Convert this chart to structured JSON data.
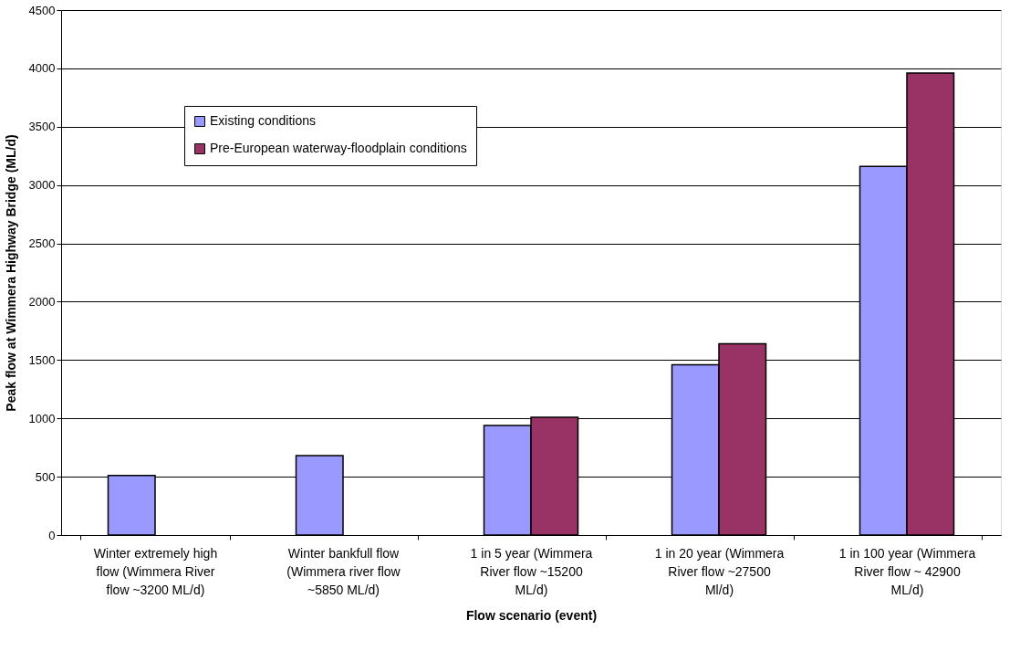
{
  "chart_data": {
    "type": "bar",
    "xlabel": "Flow scenario (event)",
    "ylabel": "Peak flow at Wimmera Highway Bridge (ML/d)",
    "categories": [
      "Winter extremely high flow (Wimmera River flow ~3200 ML/d)",
      "Winter bankfull flow (Wimmera river flow ~5850 ML/d)",
      "1 in 5 year (Wimmera River flow ~15200 ML/d)",
      "1 in 20 year (Wimmera River flow ~27500 Ml/d)",
      "1 in 100 year (Wimmera River flow ~ 42900 ML/d)"
    ],
    "series": [
      {
        "name": "Existing conditions",
        "color": "#9999ff",
        "values": [
          510,
          680,
          940,
          1460,
          3160
        ]
      },
      {
        "name": "Pre-European waterway-floodplain conditions",
        "color": "#993366",
        "values": [
          null,
          null,
          1010,
          1640,
          3960
        ]
      }
    ],
    "ylim": [
      0,
      4500
    ],
    "yticks": [
      0,
      500,
      1000,
      1500,
      2000,
      2500,
      3000,
      3500,
      4000,
      4500
    ],
    "grid": "y",
    "legend": "top left"
  }
}
